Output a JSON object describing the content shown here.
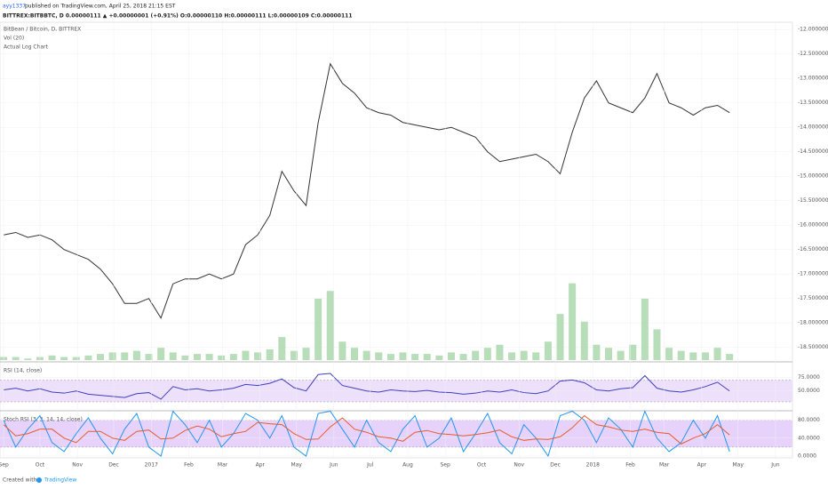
{
  "header": {
    "author": "ayy1337",
    "published": "published on TradingView.com, April 25, 2018 21:15 EST",
    "symbol_line": "BITTREX:BITBBTC, D 0.00000111 ▲ +0.00000001 (+0.91%) O:0.00000110 H:0.00000111 L:0.00000109 C:0.00000111"
  },
  "footer": {
    "created": "Created with",
    "brand": "TradingView"
  },
  "chart_data": [
    {
      "type": "line",
      "title": "BitBean / Bitcoin, D, BITTREX",
      "annotations": [
        "Vol (20)",
        "Actual Log Chart"
      ],
      "x": [
        0,
        10,
        20,
        30,
        40,
        50,
        60,
        70,
        80,
        90,
        100,
        110,
        120,
        130,
        140,
        150,
        160,
        170,
        180,
        190,
        200,
        210,
        220,
        230,
        240,
        250,
        260,
        270,
        280,
        290,
        300,
        310,
        320,
        330,
        340,
        350,
        360,
        370,
        380,
        390,
        400,
        410,
        420,
        430,
        440,
        450,
        460,
        470,
        480,
        490,
        500,
        510,
        520,
        530,
        540,
        550,
        560,
        570,
        580,
        590,
        600
      ],
      "series": [
        {
          "color": "#333333",
          "values": [
            -16.2,
            -16.15,
            -16.25,
            -16.2,
            -16.3,
            -16.5,
            -16.6,
            -16.7,
            -16.9,
            -17.2,
            -17.6,
            -17.6,
            -17.5,
            -17.9,
            -17.2,
            -17.1,
            -17.1,
            -17.0,
            -17.1,
            -17.0,
            -16.4,
            -16.2,
            -15.8,
            -14.9,
            -15.3,
            -15.6,
            -13.9,
            -12.7,
            -13.1,
            -13.3,
            -13.6,
            -13.7,
            -13.75,
            -13.9,
            -13.95,
            -14.0,
            -14.05,
            -14.0,
            -14.1,
            -14.2,
            -14.5,
            -14.7,
            -14.65,
            -14.6,
            -14.55,
            -14.7,
            -14.95,
            -14.1,
            -13.4,
            -13.05,
            -13.5,
            -13.6,
            -13.7,
            -13.4,
            -12.9,
            -13.5,
            -13.6,
            -13.75,
            -13.6,
            -13.55,
            -13.7
          ]
        },
        {
          "type": "bar",
          "axis": "y2",
          "color": "#a5d6a7",
          "values": [
            2,
            2,
            1,
            2,
            3,
            2,
            2,
            3,
            4,
            5,
            5,
            6,
            4,
            8,
            5,
            3,
            4,
            4,
            3,
            4,
            6,
            5,
            7,
            15,
            6,
            8,
            40,
            45,
            12,
            8,
            6,
            5,
            4,
            5,
            4,
            4,
            3,
            5,
            4,
            6,
            8,
            10,
            5,
            6,
            5,
            12,
            30,
            50,
            25,
            10,
            8,
            6,
            10,
            40,
            20,
            8,
            6,
            5,
            5,
            8,
            4
          ]
        }
      ],
      "ylim": [
        -18.76,
        -11.85
      ],
      "y2lim": [
        0,
        220
      ],
      "yticks": [
        {
          "value": -12,
          "label": "-12.0000000"
        },
        {
          "value": -12.5,
          "label": "-12.5000000"
        },
        {
          "value": -13,
          "label": "-13.0000000"
        },
        {
          "value": -13.5,
          "label": "-13.5000000"
        },
        {
          "value": -14,
          "label": "-14.0000000"
        },
        {
          "value": -14.5,
          "label": "-14.5000000"
        },
        {
          "value": -15,
          "label": "-15.0000000"
        },
        {
          "value": -15.5,
          "label": "-15.5000000"
        },
        {
          "value": -16,
          "label": "-16.0000000"
        },
        {
          "value": -16.5,
          "label": "-16.5000000"
        },
        {
          "value": -17,
          "label": "-17.0000000"
        },
        {
          "value": -17.5,
          "label": "-17.5000000"
        },
        {
          "value": -18,
          "label": "-18.0000000"
        },
        {
          "value": -18.5,
          "label": "-18.5000000"
        }
      ],
      "xlim": [
        -3,
        652
      ],
      "grid": true
    },
    {
      "type": "line",
      "title": "RSI (14, close)",
      "x": [
        0,
        10,
        20,
        30,
        40,
        50,
        60,
        70,
        80,
        90,
        100,
        110,
        120,
        130,
        140,
        150,
        160,
        170,
        180,
        190,
        200,
        210,
        220,
        230,
        240,
        250,
        260,
        270,
        280,
        290,
        300,
        310,
        320,
        330,
        340,
        350,
        360,
        370,
        380,
        390,
        400,
        410,
        420,
        430,
        440,
        450,
        460,
        470,
        480,
        490,
        500,
        510,
        520,
        530,
        540,
        550,
        560,
        570,
        580,
        590,
        600
      ],
      "series": [
        {
          "color": "#3f3fbf",
          "values": [
            52,
            55,
            50,
            54,
            48,
            46,
            50,
            44,
            42,
            40,
            38,
            45,
            47,
            35,
            58,
            52,
            54,
            50,
            52,
            55,
            62,
            60,
            64,
            72,
            56,
            50,
            80,
            82,
            60,
            55,
            50,
            48,
            52,
            50,
            49,
            51,
            48,
            47,
            44,
            46,
            50,
            48,
            52,
            47,
            45,
            50,
            68,
            70,
            65,
            52,
            50,
            54,
            56,
            78,
            55,
            50,
            48,
            52,
            58,
            66,
            50
          ]
        }
      ],
      "ylim": [
        17,
        100
      ],
      "band": [
        30,
        70
      ],
      "band_color": "#ede0fb",
      "yticks": [
        {
          "value": 75,
          "label": "75.0000"
        },
        {
          "value": 50,
          "label": "50.0000"
        }
      ],
      "xlim": [
        -3,
        652
      ],
      "grid": true
    },
    {
      "type": "line",
      "title": "Stoch RSI (3, 3, 14, 14, close)",
      "x": [
        0,
        10,
        20,
        30,
        40,
        50,
        60,
        70,
        80,
        90,
        100,
        110,
        120,
        130,
        140,
        150,
        160,
        170,
        180,
        190,
        200,
        210,
        220,
        230,
        240,
        250,
        260,
        270,
        280,
        290,
        300,
        310,
        320,
        330,
        340,
        350,
        360,
        370,
        380,
        390,
        400,
        410,
        420,
        430,
        440,
        450,
        460,
        470,
        480,
        490,
        500,
        510,
        520,
        530,
        540,
        550,
        560,
        570,
        580,
        590,
        600
      ],
      "series": [
        {
          "color": "#2196f3",
          "values": [
            80,
            20,
            60,
            90,
            30,
            10,
            50,
            85,
            40,
            5,
            60,
            95,
            20,
            0,
            100,
            70,
            30,
            80,
            20,
            50,
            95,
            80,
            40,
            90,
            20,
            0,
            95,
            100,
            60,
            20,
            80,
            30,
            10,
            60,
            90,
            20,
            40,
            85,
            10,
            50,
            95,
            30,
            5,
            70,
            40,
            0,
            90,
            100,
            80,
            30,
            85,
            60,
            20,
            100,
            40,
            10,
            30,
            80,
            40,
            90,
            10
          ]
        },
        {
          "color": "#e65c2e",
          "values": [
            70,
            45,
            50,
            60,
            60,
            40,
            30,
            55,
            55,
            40,
            35,
            55,
            58,
            38,
            40,
            57,
            67,
            60,
            43,
            50,
            55,
            75,
            72,
            70,
            50,
            37,
            38,
            65,
            85,
            60,
            53,
            43,
            40,
            33,
            53,
            57,
            50,
            48,
            45,
            48,
            52,
            58,
            43,
            35,
            38,
            37,
            43,
            63,
            90,
            70,
            65,
            58,
            55,
            60,
            53,
            50,
            27,
            40,
            50,
            70,
            47
          ]
        }
      ],
      "ylim": [
        -4,
        97
      ],
      "band": [
        20,
        80
      ],
      "band_color": "#e7d2fb",
      "yticks": [
        {
          "value": 80,
          "label": "80.0000"
        },
        {
          "value": 40,
          "label": "40.0000"
        },
        {
          "value": 0,
          "label": "0.0000"
        }
      ],
      "xlim": [
        -3,
        652
      ],
      "grid": true,
      "xticks": [
        {
          "value": 0,
          "label": "Sep"
        },
        {
          "value": 30,
          "label": "Oct"
        },
        {
          "value": 61,
          "label": "Nov"
        },
        {
          "value": 91,
          "label": "Dec"
        },
        {
          "value": 122,
          "label": "2017"
        },
        {
          "value": 153,
          "label": "Feb"
        },
        {
          "value": 181,
          "label": "Mar"
        },
        {
          "value": 212,
          "label": "Apr"
        },
        {
          "value": 242,
          "label": "May"
        },
        {
          "value": 273,
          "label": "Jun"
        },
        {
          "value": 303,
          "label": "Jul"
        },
        {
          "value": 334,
          "label": "Aug"
        },
        {
          "value": 365,
          "label": "Sep"
        },
        {
          "value": 395,
          "label": "Oct"
        },
        {
          "value": 426,
          "label": "Nov"
        },
        {
          "value": 456,
          "label": "Dec"
        },
        {
          "value": 487,
          "label": "2018"
        },
        {
          "value": 518,
          "label": "Feb"
        },
        {
          "value": 546,
          "label": "Mar"
        },
        {
          "value": 577,
          "label": "Apr"
        },
        {
          "value": 607,
          "label": "May"
        },
        {
          "value": 638,
          "label": "Jun"
        }
      ]
    }
  ]
}
